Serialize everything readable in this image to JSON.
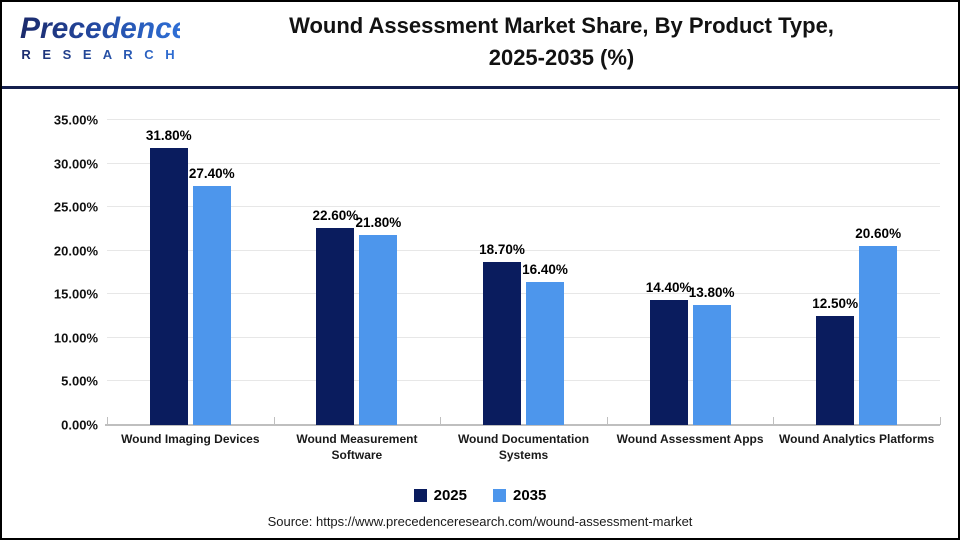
{
  "logo": {
    "brand": "Precedence",
    "sub": "R E S E A R C H"
  },
  "header": {
    "title_line1": "Wound Assessment Market Share, By Product Type,",
    "title_line2": "2025-2035 (%)"
  },
  "chart_data": {
    "type": "bar",
    "title": "Wound Assessment Market Share, By Product Type, 2025-2035 (%)",
    "xlabel": "",
    "ylabel": "",
    "ylim": [
      0,
      35
    ],
    "y_tick_step": 5,
    "y_tick_labels": [
      "0.00%",
      "5.00%",
      "10.00%",
      "15.00%",
      "20.00%",
      "25.00%",
      "30.00%",
      "35.00%"
    ],
    "grid": true,
    "legend_position": "bottom",
    "categories": [
      "Wound Imaging Devices",
      "Wound Measurement Software",
      "Wound Documentation Systems",
      "Wound Assessment Apps",
      "Wound Analytics Platforms"
    ],
    "series": [
      {
        "name": "2025",
        "color": "#0a1c5e",
        "values": [
          31.8,
          22.6,
          18.7,
          14.4,
          12.5
        ],
        "labels": [
          "31.80%",
          "22.60%",
          "18.70%",
          "14.40%",
          "12.50%"
        ]
      },
      {
        "name": "2035",
        "color": "#4d96ec",
        "values": [
          27.4,
          21.8,
          16.4,
          13.8,
          20.6
        ],
        "labels": [
          "27.40%",
          "21.80%",
          "16.40%",
          "13.80%",
          "20.60%"
        ]
      }
    ]
  },
  "footer": {
    "source": "Source: https://www.precedenceresearch.com/wound-assessment-market"
  },
  "colors": {
    "navy": "#0a1c5e",
    "blue": "#4d96ec",
    "gridline": "#e7e7e7",
    "axis": "#bfbfbf",
    "divider": "#141f4d"
  }
}
